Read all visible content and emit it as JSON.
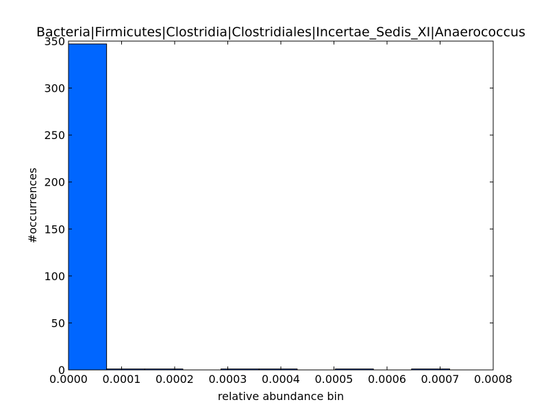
{
  "chart_data": {
    "type": "bar",
    "title": "Bacteria|Firmicutes|Clostridia|Clostridiales|Incertae_Sedis_XI|Anaerococcus",
    "xlabel": "relative abundance bin",
    "ylabel": "#occurrences",
    "xlim": [
      0,
      0.0008
    ],
    "ylim": [
      0,
      350
    ],
    "x_ticks": [
      0,
      0.0001,
      0.0002,
      0.0003,
      0.0004,
      0.0005,
      0.0006,
      0.0007,
      0.0008
    ],
    "x_tick_labels": [
      "0.0000",
      "0.0001",
      "0.0002",
      "0.0003",
      "0.0004",
      "0.0005",
      "0.0006",
      "0.0007",
      "0.0008"
    ],
    "y_ticks": [
      0,
      50,
      100,
      150,
      200,
      250,
      300,
      350
    ],
    "y_tick_labels": [
      "0",
      "50",
      "100",
      "150",
      "200",
      "250",
      "300",
      "350"
    ],
    "bins": [
      {
        "start": 0.0,
        "end": 7.18e-05,
        "count": 347
      },
      {
        "start": 7.18e-05,
        "end": 0.0001436,
        "count": 1
      },
      {
        "start": 0.0001436,
        "end": 0.0002154,
        "count": 1
      },
      {
        "start": 0.0002154,
        "end": 0.0002872,
        "count": 0
      },
      {
        "start": 0.0002872,
        "end": 0.000359,
        "count": 1
      },
      {
        "start": 0.000359,
        "end": 0.0004308,
        "count": 1
      },
      {
        "start": 0.0004308,
        "end": 0.0005026,
        "count": 0
      },
      {
        "start": 0.0005026,
        "end": 0.0005744,
        "count": 1
      },
      {
        "start": 0.0005744,
        "end": 0.0006462,
        "count": 0
      },
      {
        "start": 0.0006462,
        "end": 0.000718,
        "count": 1
      }
    ],
    "bar_color": "#0066ff",
    "edge_color": "#000000",
    "grid": false,
    "legend": "none"
  }
}
